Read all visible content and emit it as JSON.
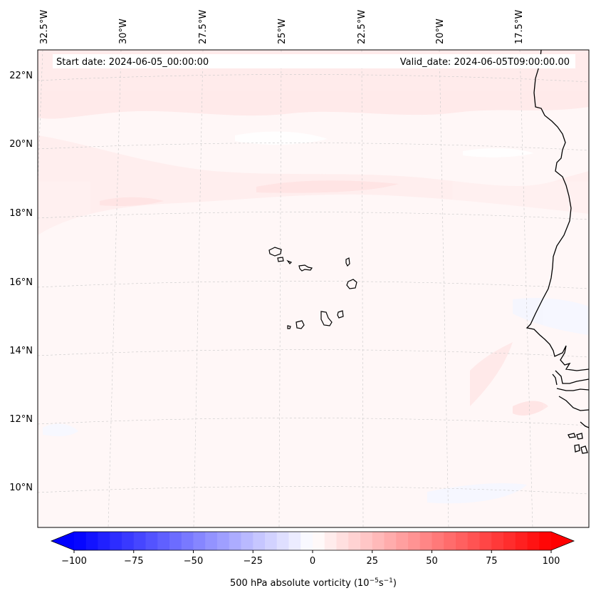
{
  "map": {
    "start_date": "Start date: 2024-06-05_00:00:00",
    "valid_date": "Valid_date: 2024-06-05T09:00:00.00",
    "lon_labels": [
      "32.5°W",
      "30°W",
      "27.5°W",
      "25°W",
      "22.5°W",
      "20°W",
      "17.5°W"
    ],
    "lat_labels": [
      "22°N",
      "20°N",
      "18°N",
      "16°N",
      "14°N",
      "12°N",
      "10°N"
    ],
    "field": "500 hPa absolute vorticity",
    "field_unit_base": "10",
    "field_unit_exp": "−5",
    "field_unit_s": "s",
    "field_unit_s_exp": "−1",
    "colorbar": {
      "ticks": [
        "−100",
        "−75",
        "−50",
        "−25",
        "0",
        "25",
        "50",
        "75",
        "100"
      ],
      "min": -100,
      "max": 100,
      "step": 5,
      "low_color": "#0000ff",
      "high_color": "#ff0000",
      "mid_color": "#ffffff"
    },
    "colors": {
      "coastline": "#000000",
      "gridline": "#c8c8c8",
      "background_tint": "#fff6f6"
    }
  }
}
